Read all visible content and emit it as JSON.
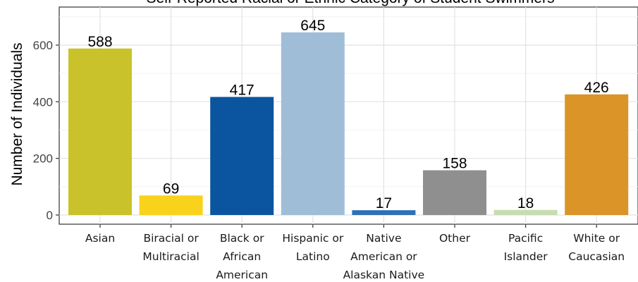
{
  "chart_data": {
    "type": "bar",
    "title": "Self-Reported Racial or Ethnic Category of Student Swimmers",
    "ylabel": "Number of Individuals",
    "xlabel": "",
    "ylim": [
      0,
      700
    ],
    "yticks": [
      0,
      200,
      400,
      600
    ],
    "grid": true,
    "legend": "none",
    "categories": [
      [
        "Asian"
      ],
      [
        "Biracial or",
        "Multiracial"
      ],
      [
        "Black or",
        "African",
        "American"
      ],
      [
        "Hispanic or",
        "Latino"
      ],
      [
        "Native",
        "American or",
        "Alaskan Native"
      ],
      [
        "Other"
      ],
      [
        "Pacific",
        "Islander"
      ],
      [
        "White or",
        "Caucasian"
      ]
    ],
    "values": [
      588,
      69,
      417,
      645,
      17,
      158,
      18,
      426
    ],
    "colors": [
      "#c9c22b",
      "#f9d21c",
      "#0b55a0",
      "#a0bdd8",
      "#2f70b5",
      "#8f8f8f",
      "#c8dcb0",
      "#da9427"
    ]
  }
}
